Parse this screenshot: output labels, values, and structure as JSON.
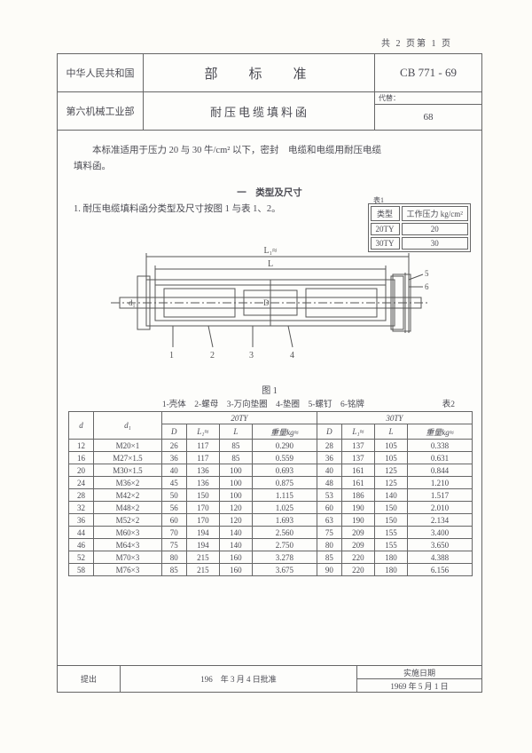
{
  "page_indicator": "共 2 页第 1 页",
  "header": {
    "country": "中华人民共和国",
    "ministry": "第六机械工业部",
    "title_top": "部　标　准",
    "title_bottom": "耐压电缆填料函",
    "standard_no": "CB 771 - 69",
    "replace_label": "代替：",
    "replace_val": "68"
  },
  "intro": {
    "line1": "本标准适用于压力 20 与 30 牛/cm² 以下，密封　电缆和电缆用耐压电缆",
    "line2": "填料函。",
    "section_heading": "一　类型及尺寸",
    "section_sub": "1. 耐压电缆填料函分类型及尺寸按图 1 与表 1、2。"
  },
  "minitable": {
    "h1": "类型",
    "h2": "工作压力 kg/cm²",
    "ref": "表1",
    "rows": [
      {
        "type": "20TY",
        "val": "20"
      },
      {
        "type": "30TY",
        "val": "30"
      }
    ]
  },
  "figure": {
    "caption": "图 1",
    "parts": "1-壳体　2-螺母　3-万向垫圈　4-垫圈　5-螺钉　6-铭牌",
    "table_ref": "表2",
    "L": "L",
    "L1": "L₁≈",
    "d": "d",
    "d1": "d₁",
    "D": "D",
    "callouts": [
      "1",
      "2",
      "3",
      "4",
      "5",
      "6"
    ]
  },
  "maintable": {
    "group1": "20TY",
    "group2": "30TY",
    "head": {
      "d": "d",
      "d1": "d₁",
      "D": "D",
      "L1": "L₁≈",
      "L": "L",
      "w": "重量kg≈"
    },
    "rows": [
      {
        "d": "12",
        "d1": "M20×1",
        "D1": "26",
        "L11": "117",
        "L1": "85",
        "w1": "0.290",
        "D2": "28",
        "L12": "137",
        "L2": "105",
        "w2": "0.338"
      },
      {
        "d": "16",
        "d1": "M27×1.5",
        "D1": "36",
        "L11": "117",
        "L1": "85",
        "w1": "0.559",
        "D2": "36",
        "L12": "137",
        "L2": "105",
        "w2": "0.631"
      },
      {
        "d": "20",
        "d1": "M30×1.5",
        "D1": "40",
        "L11": "136",
        "L1": "100",
        "w1": "0.693",
        "D2": "40",
        "L12": "161",
        "L2": "125",
        "w2": "0.844"
      },
      {
        "d": "24",
        "d1": "M36×2",
        "D1": "45",
        "L11": "136",
        "L1": "100",
        "w1": "0.875",
        "D2": "48",
        "L12": "161",
        "L2": "125",
        "w2": "1.210"
      },
      {
        "d": "28",
        "d1": "M42×2",
        "D1": "50",
        "L11": "150",
        "L1": "100",
        "w1": "1.115",
        "D2": "53",
        "L12": "186",
        "L2": "140",
        "w2": "1.517"
      },
      {
        "d": "32",
        "d1": "M48×2",
        "D1": "56",
        "L11": "170",
        "L1": "120",
        "w1": "1.025",
        "D2": "60",
        "L12": "190",
        "L2": "150",
        "w2": "2.010"
      },
      {
        "d": "36",
        "d1": "M52×2",
        "D1": "60",
        "L11": "170",
        "L1": "120",
        "w1": "1.693",
        "D2": "63",
        "L12": "190",
        "L2": "150",
        "w2": "2.134"
      },
      {
        "d": "44",
        "d1": "M60×3",
        "D1": "70",
        "L11": "194",
        "L1": "140",
        "w1": "2.560",
        "D2": "75",
        "L12": "209",
        "L2": "155",
        "w2": "3.400"
      },
      {
        "d": "46",
        "d1": "M64×3",
        "D1": "75",
        "L11": "194",
        "L1": "140",
        "w1": "2.750",
        "D2": "80",
        "L12": "209",
        "L2": "155",
        "w2": "3.650"
      },
      {
        "d": "52",
        "d1": "M70×3",
        "D1": "80",
        "L11": "215",
        "L1": "160",
        "w1": "3.278",
        "D2": "85",
        "L12": "220",
        "L2": "180",
        "w2": "4.388"
      },
      {
        "d": "58",
        "d1": "M76×3",
        "D1": "85",
        "L11": "215",
        "L1": "160",
        "w1": "3.675",
        "D2": "90",
        "L12": "220",
        "L2": "180",
        "w2": "6.156"
      }
    ]
  },
  "footer": {
    "submit_label": "提出",
    "approve": "196　年 3 月 4 日批准",
    "effect_label": "实施日期",
    "effect_date": "1969 年 5 月 1 日"
  }
}
